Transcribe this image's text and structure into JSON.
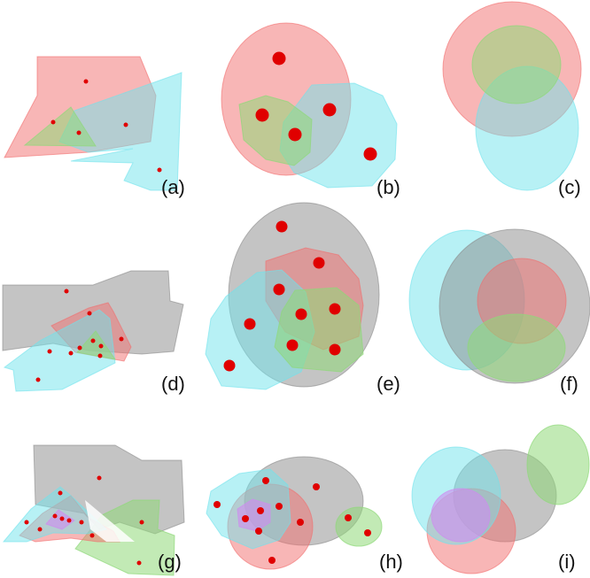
{
  "colors": {
    "red": "#f26d6d",
    "cyan": "#6fe3ec",
    "green": "#8fd879",
    "gray": "#8a8a8a",
    "purple": "#cf8cf0",
    "dot": "#e00000"
  },
  "panels": [
    {
      "id": "a",
      "label": "(a)"
    },
    {
      "id": "b",
      "label": "(b)"
    },
    {
      "id": "c",
      "label": "(c)"
    },
    {
      "id": "d",
      "label": "(d)"
    },
    {
      "id": "e",
      "label": "(e)"
    },
    {
      "id": "f",
      "label": "(f)"
    },
    {
      "id": "g",
      "label": "(g)"
    },
    {
      "id": "h",
      "label": "(h)"
    },
    {
      "id": "i",
      "label": "(i)"
    }
  ]
}
